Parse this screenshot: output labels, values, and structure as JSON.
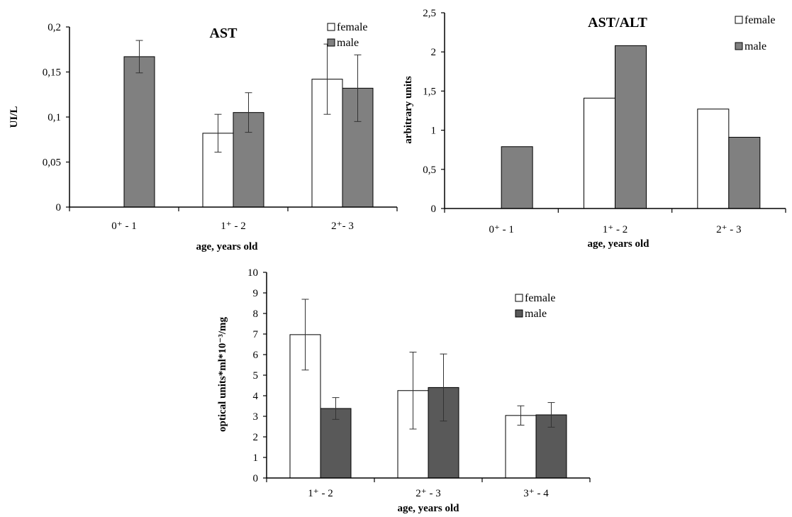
{
  "colors": {
    "female_fill": "#ffffff",
    "male_fill_light": "#808080",
    "male_fill_dark": "#595959",
    "outline": "#000000"
  },
  "chart_data": [
    {
      "type": "bar",
      "title": "AST",
      "xlabel": "age, years old",
      "ylabel": "UI/L",
      "categories": [
        "0⁺ - 1",
        "1⁺ - 2",
        "2⁺- 3"
      ],
      "ylim": [
        0,
        0.2
      ],
      "yticks": [
        0,
        0.05,
        0.1,
        0.15,
        0.2
      ],
      "ytick_labels": [
        "0",
        "0,05",
        "0,1",
        "0,15",
        "0,2"
      ],
      "grid": false,
      "legend": "top-right",
      "series": [
        {
          "name": "female",
          "color": "#ffffff",
          "values": [
            null,
            0.082,
            0.142
          ],
          "errors": [
            null,
            0.021,
            0.039
          ]
        },
        {
          "name": "male",
          "color": "#808080",
          "values": [
            0.167,
            0.105,
            0.132
          ],
          "errors": [
            0.018,
            0.022,
            0.037
          ]
        }
      ]
    },
    {
      "type": "bar",
      "title": "AST/ALT",
      "xlabel": "age, years old",
      "ylabel": "arbitrary  units",
      "categories": [
        "0⁺ - 1",
        "1⁺ - 2",
        "2⁺ - 3"
      ],
      "ylim": [
        0,
        2.5
      ],
      "yticks": [
        0,
        0.5,
        1,
        1.5,
        2,
        2.5
      ],
      "ytick_labels": [
        "0",
        "0,5",
        "1",
        "1,5",
        "2",
        "2,5"
      ],
      "grid": false,
      "legend": "top-right",
      "series": [
        {
          "name": "female",
          "color": "#ffffff",
          "values": [
            null,
            1.41,
            1.27
          ],
          "errors": [
            null,
            null,
            null
          ]
        },
        {
          "name": "male",
          "color": "#808080",
          "values": [
            0.79,
            2.08,
            0.91
          ],
          "errors": [
            null,
            null,
            null
          ]
        }
      ]
    },
    {
      "type": "bar",
      "title": "",
      "xlabel": "age, years old",
      "ylabel": "optical units*ml*10⁻³/mg",
      "categories": [
        "1⁺ - 2",
        "2⁺ - 3",
        "3⁺ - 4"
      ],
      "ylim": [
        0,
        10
      ],
      "yticks": [
        0,
        1,
        2,
        3,
        4,
        5,
        6,
        7,
        8,
        9,
        10
      ],
      "ytick_labels": [
        "0",
        "1",
        "2",
        "3",
        "4",
        "5",
        "6",
        "7",
        "8",
        "9",
        "10"
      ],
      "grid": false,
      "legend": "top-right",
      "series": [
        {
          "name": "female",
          "color": "#ffffff",
          "values": [
            6.97,
            4.25,
            3.04
          ],
          "errors": [
            1.72,
            1.87,
            0.47
          ]
        },
        {
          "name": "male",
          "color": "#595959",
          "values": [
            3.38,
            4.4,
            3.07
          ],
          "errors": [
            0.53,
            1.63,
            0.6
          ]
        }
      ]
    }
  ]
}
